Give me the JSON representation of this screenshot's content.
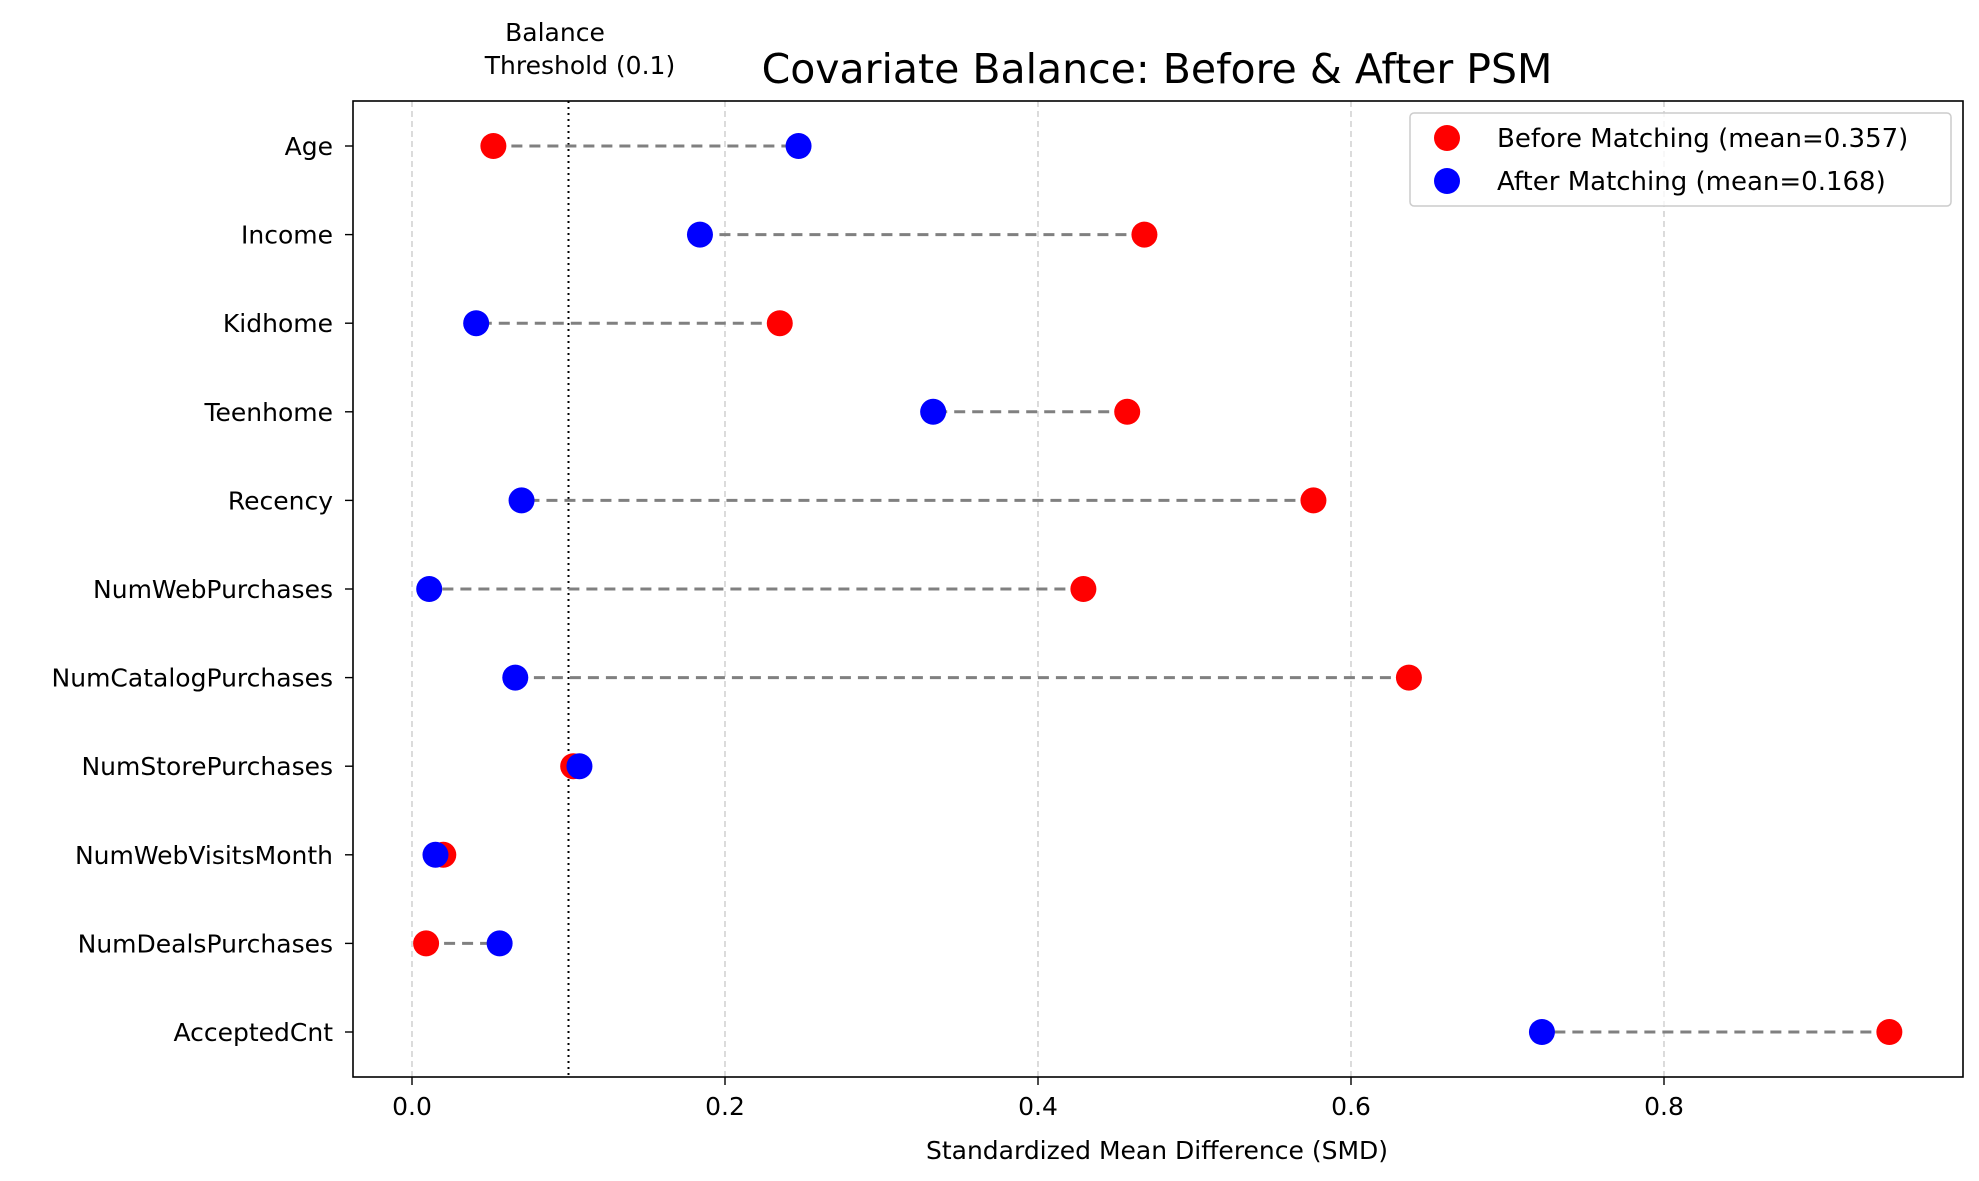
{
  "chart_data": {
    "type": "scatter",
    "title": "Covariate Balance: Before & After PSM",
    "xlabel": "Standardized Mean Difference (SMD)",
    "ylabel": "",
    "xlim": [
      -0.037,
      0.99
    ],
    "x_ticks": [
      "0.0",
      "0.2",
      "0.4",
      "0.6",
      "0.8"
    ],
    "x_tick_values": [
      0.0,
      0.2,
      0.4,
      0.6,
      0.8
    ],
    "grid": "vertical dashed",
    "legend_position": "top-right",
    "categories": [
      "Age",
      "Income",
      "Kidhome",
      "Teenhome",
      "Recency",
      "NumWebPurchases",
      "NumCatalogPurchases",
      "NumStorePurchases",
      "NumWebVisitsMonth",
      "NumDealsPurchases",
      "AcceptedCnt"
    ],
    "series": [
      {
        "name": "Before Matching (mean=0.357)",
        "color": "#ff0000",
        "values": [
          0.052,
          0.468,
          0.235,
          0.457,
          0.576,
          0.429,
          0.637,
          0.103,
          0.02,
          0.009,
          0.944
        ]
      },
      {
        "name": "After Matching (mean=0.168)",
        "color": "#0000ff",
        "values": [
          0.247,
          0.184,
          0.041,
          0.333,
          0.07,
          0.011,
          0.066,
          0.107,
          0.015,
          0.056,
          0.722
        ]
      }
    ],
    "threshold": {
      "value": 0.1,
      "label_line1": "Balance",
      "label_line2": "Threshold (0.1)"
    }
  }
}
